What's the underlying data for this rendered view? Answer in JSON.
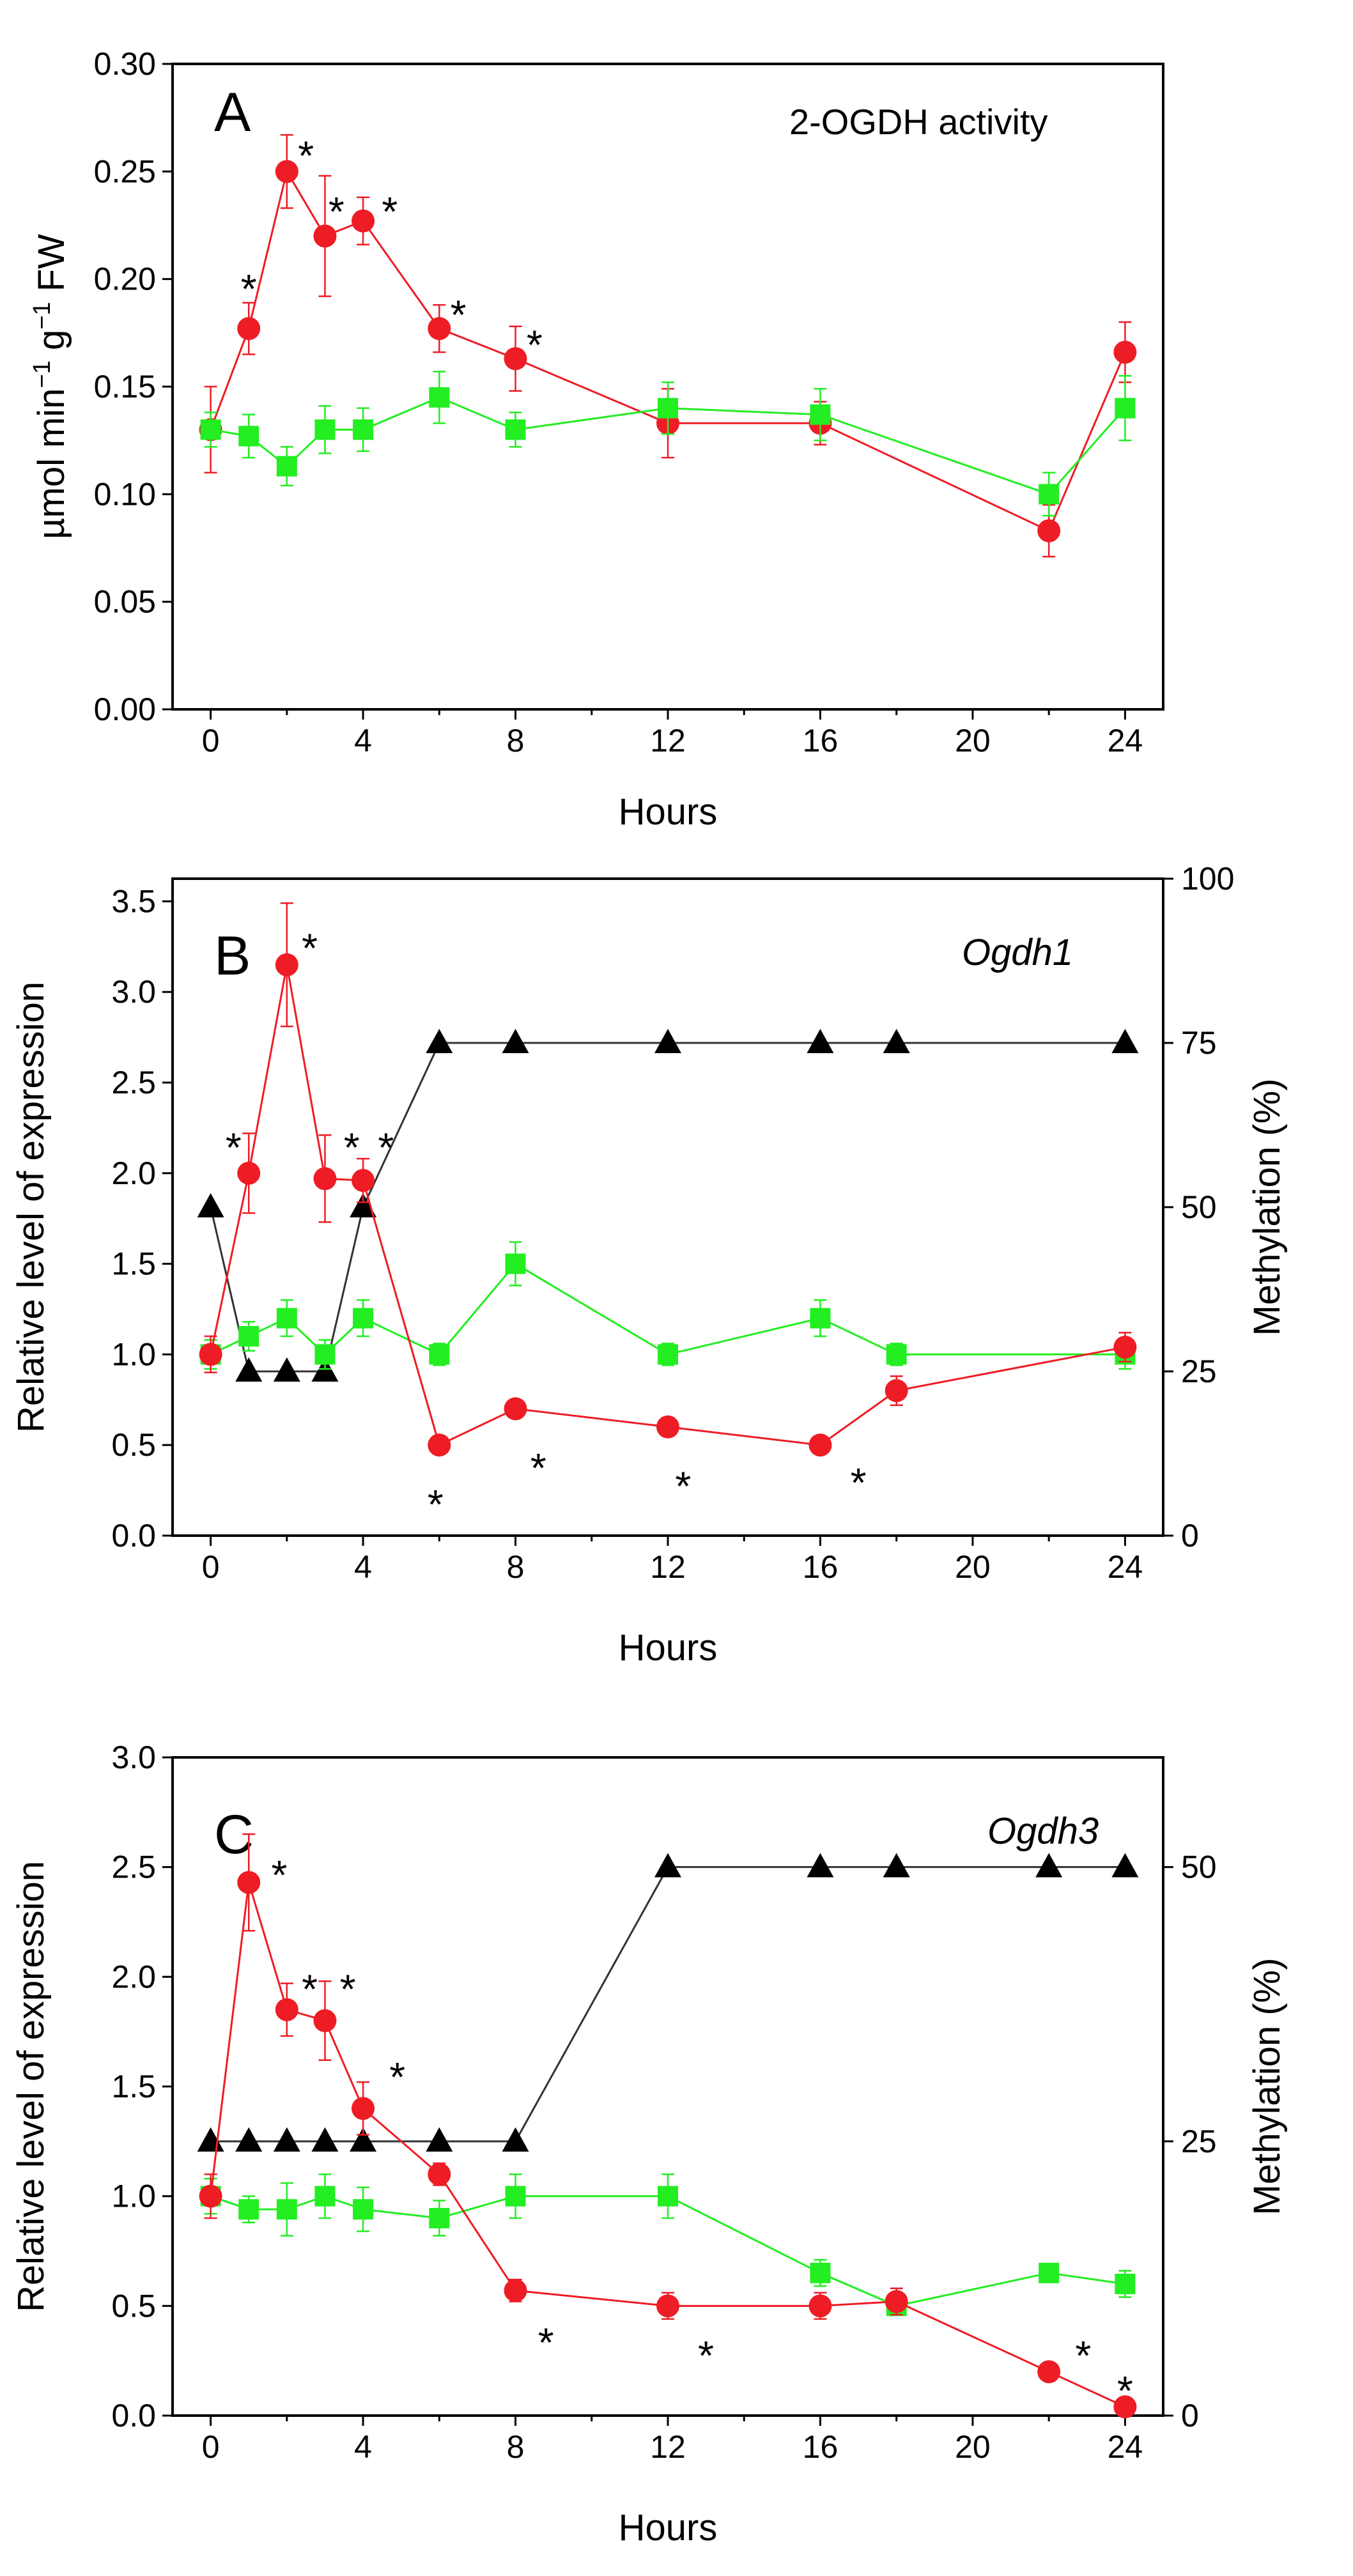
{
  "chart_data": [
    {
      "type": "line",
      "panel": "A",
      "annotation": "2-OGDH activity",
      "xlabel": "Hours",
      "ylabel_main": "µmol min",
      "ylabel_sup1": "−1",
      "ylabel_mid": " g",
      "ylabel_sup2": "−1",
      "ylabel_end": " FW",
      "xlim": [
        -1,
        25
      ],
      "ylim": [
        0,
        0.3
      ],
      "x_ticks": [
        0,
        4,
        8,
        12,
        16,
        20,
        24
      ],
      "x_tick_labels": [
        "0",
        "4",
        "8",
        "12",
        "16",
        "20",
        "24"
      ],
      "y_ticks": [
        0,
        0.05,
        0.1,
        0.15,
        0.2,
        0.25,
        0.3
      ],
      "y_tick_labels": [
        "0.00",
        "0.05",
        "0.10",
        "0.15",
        "0.20",
        "0.25",
        "0.30"
      ],
      "series": [
        {
          "name": "red-circles",
          "color": "#ee1c25",
          "marker": "circle",
          "axis": "left",
          "x": [
            0,
            1,
            2,
            3,
            4,
            6,
            8,
            12,
            16,
            22,
            24
          ],
          "y": [
            0.13,
            0.177,
            0.25,
            0.22,
            0.227,
            0.177,
            0.163,
            0.133,
            0.133,
            0.083,
            0.166
          ],
          "err": [
            0.02,
            0.012,
            0.017,
            0.028,
            0.011,
            0.011,
            0.015,
            0.016,
            0.01,
            0.012,
            0.014
          ]
        },
        {
          "name": "green-squares",
          "color": "#22ee22",
          "marker": "square",
          "axis": "left",
          "x": [
            0,
            1,
            2,
            3,
            4,
            6,
            8,
            12,
            16,
            22,
            24
          ],
          "y": [
            0.13,
            0.127,
            0.113,
            0.13,
            0.13,
            0.145,
            0.13,
            0.14,
            0.137,
            0.1,
            0.14
          ],
          "err": [
            0.008,
            0.01,
            0.009,
            0.011,
            0.01,
            0.012,
            0.008,
            0.012,
            0.012,
            0.01,
            0.015
          ]
        }
      ],
      "stars": [
        {
          "x": 1,
          "y": 0.196,
          "text": "*"
        },
        {
          "x": 2.5,
          "y": 0.258,
          "text": "*"
        },
        {
          "x": 3.3,
          "y": 0.232,
          "text": "*"
        },
        {
          "x": 4.7,
          "y": 0.232,
          "text": "*"
        },
        {
          "x": 6.5,
          "y": 0.184,
          "text": "*"
        },
        {
          "x": 8.5,
          "y": 0.17,
          "text": "*"
        }
      ]
    },
    {
      "type": "line",
      "panel": "B",
      "annotation": "Ogdh1",
      "xlabel": "Hours",
      "ylabel": "Relative level of expression",
      "ylabel_right": "Methylation (%)",
      "xlim": [
        -1,
        25
      ],
      "ylim": [
        0,
        3.625
      ],
      "ylim_right": [
        0,
        100
      ],
      "x_ticks": [
        0,
        4,
        8,
        12,
        16,
        20,
        24
      ],
      "x_tick_labels": [
        "0",
        "4",
        "8",
        "12",
        "16",
        "20",
        "24"
      ],
      "y_ticks": [
        0,
        0.5,
        1.0,
        1.5,
        2.0,
        2.5,
        3.0,
        3.5
      ],
      "y_tick_labels": [
        "0.0",
        "0.5",
        "1.0",
        "1.5",
        "2.0",
        "2.5",
        "3.0",
        "3.5"
      ],
      "y_ticks_right": [
        0,
        25,
        50,
        75,
        100
      ],
      "y_tick_labels_right": [
        "0",
        "25",
        "50",
        "75",
        "100"
      ],
      "series": [
        {
          "name": "methylation-triangles",
          "color": "#000000",
          "marker": "triangle",
          "axis": "right",
          "x": [
            0,
            1,
            2,
            3,
            4,
            6,
            8,
            12,
            16,
            18,
            24
          ],
          "y": [
            50,
            25,
            25,
            25,
            50,
            75,
            75,
            75,
            75,
            75,
            75
          ],
          "err": []
        },
        {
          "name": "green-squares",
          "color": "#22ee22",
          "marker": "square",
          "axis": "left",
          "x": [
            0,
            1,
            2,
            3,
            4,
            6,
            8,
            12,
            16,
            18,
            24
          ],
          "y": [
            1.0,
            1.1,
            1.2,
            1.0,
            1.2,
            1.0,
            1.5,
            1.0,
            1.2,
            1.0,
            1.0
          ],
          "err": [
            0.08,
            0.08,
            0.1,
            0.08,
            0.1,
            0.06,
            0.12,
            0.06,
            0.1,
            0.06,
            0.08
          ]
        },
        {
          "name": "red-circles",
          "color": "#ee1c25",
          "marker": "circle",
          "axis": "left",
          "x": [
            0,
            1,
            2,
            3,
            4,
            6,
            8,
            12,
            16,
            18,
            24
          ],
          "y": [
            1.0,
            2.0,
            3.15,
            1.97,
            1.96,
            0.5,
            0.7,
            0.6,
            0.5,
            0.8,
            1.04
          ],
          "err": [
            0.1,
            0.22,
            0.34,
            0.24,
            0.12,
            0.03,
            0.04,
            0.05,
            0.03,
            0.08,
            0.08
          ]
        }
      ],
      "stars": [
        {
          "x": 0.6,
          "y": 2.15,
          "text": "*"
        },
        {
          "x": 2.6,
          "y": 3.25,
          "text": "*"
        },
        {
          "x": 3.7,
          "y": 2.15,
          "text": "*"
        },
        {
          "x": 4.6,
          "y": 2.15,
          "text": "*"
        },
        {
          "x": 5.9,
          "y": 0.18,
          "text": "*"
        },
        {
          "x": 8.6,
          "y": 0.38,
          "text": "*"
        },
        {
          "x": 12.4,
          "y": 0.28,
          "text": "*"
        },
        {
          "x": 17.0,
          "y": 0.3,
          "text": "*"
        }
      ]
    },
    {
      "type": "line",
      "panel": "C",
      "annotation": "Ogdh3",
      "xlabel": "Hours",
      "ylabel": "Relative level of expression",
      "ylabel_right": "Methylation (%)",
      "xlim": [
        -1,
        25
      ],
      "ylim": [
        0,
        3.0
      ],
      "ylim_right": [
        0,
        60
      ],
      "x_ticks": [
        0,
        4,
        8,
        12,
        16,
        20,
        24
      ],
      "x_tick_labels": [
        "0",
        "4",
        "8",
        "12",
        "16",
        "20",
        "24"
      ],
      "y_ticks": [
        0,
        0.5,
        1.0,
        1.5,
        2.0,
        2.5,
        3.0
      ],
      "y_tick_labels": [
        "0.0",
        "0.5",
        "1.0",
        "1.5",
        "2.0",
        "2.5",
        "3.0"
      ],
      "y_ticks_right": [
        0,
        25,
        50
      ],
      "y_tick_labels_right": [
        "0",
        "25",
        "50"
      ],
      "series": [
        {
          "name": "methylation-triangles",
          "color": "#000000",
          "marker": "triangle",
          "axis": "right",
          "x": [
            0,
            1,
            2,
            3,
            4,
            6,
            8,
            12,
            16,
            18,
            22,
            24
          ],
          "y": [
            25,
            25,
            25,
            25,
            25,
            25,
            25,
            50,
            50,
            50,
            50,
            50
          ],
          "err": []
        },
        {
          "name": "green-squares",
          "color": "#22ee22",
          "marker": "square",
          "axis": "left",
          "x": [
            0,
            1,
            2,
            3,
            4,
            6,
            8,
            12,
            16,
            18,
            22,
            24
          ],
          "y": [
            1.0,
            0.94,
            0.94,
            1.0,
            0.94,
            0.9,
            1.0,
            1.0,
            0.65,
            0.5,
            0.65,
            0.6
          ],
          "err": [
            0.08,
            0.06,
            0.12,
            0.1,
            0.1,
            0.08,
            0.1,
            0.1,
            0.06,
            0.04,
            0.04,
            0.06
          ]
        },
        {
          "name": "red-circles",
          "color": "#ee1c25",
          "marker": "circle",
          "axis": "left",
          "x": [
            0,
            1,
            2,
            3,
            4,
            6,
            8,
            12,
            16,
            18,
            22,
            24
          ],
          "y": [
            1.0,
            2.43,
            1.85,
            1.8,
            1.4,
            1.1,
            0.57,
            0.5,
            0.5,
            0.52,
            0.2,
            0.04
          ],
          "err": [
            0.1,
            0.22,
            0.12,
            0.18,
            0.12,
            0.05,
            0.05,
            0.06,
            0.06,
            0.06,
            0.03,
            0.02
          ]
        }
      ],
      "stars": [
        {
          "x": 1.8,
          "y": 2.47,
          "text": "*"
        },
        {
          "x": 2.6,
          "y": 1.95,
          "text": "*"
        },
        {
          "x": 3.6,
          "y": 1.95,
          "text": "*"
        },
        {
          "x": 4.9,
          "y": 1.55,
          "text": "*"
        },
        {
          "x": 8.8,
          "y": 0.34,
          "text": "*"
        },
        {
          "x": 13.0,
          "y": 0.28,
          "text": "*"
        },
        {
          "x": 22.9,
          "y": 0.28,
          "text": "*"
        },
        {
          "x": 24.0,
          "y": 0.12,
          "text": "*"
        }
      ]
    }
  ]
}
